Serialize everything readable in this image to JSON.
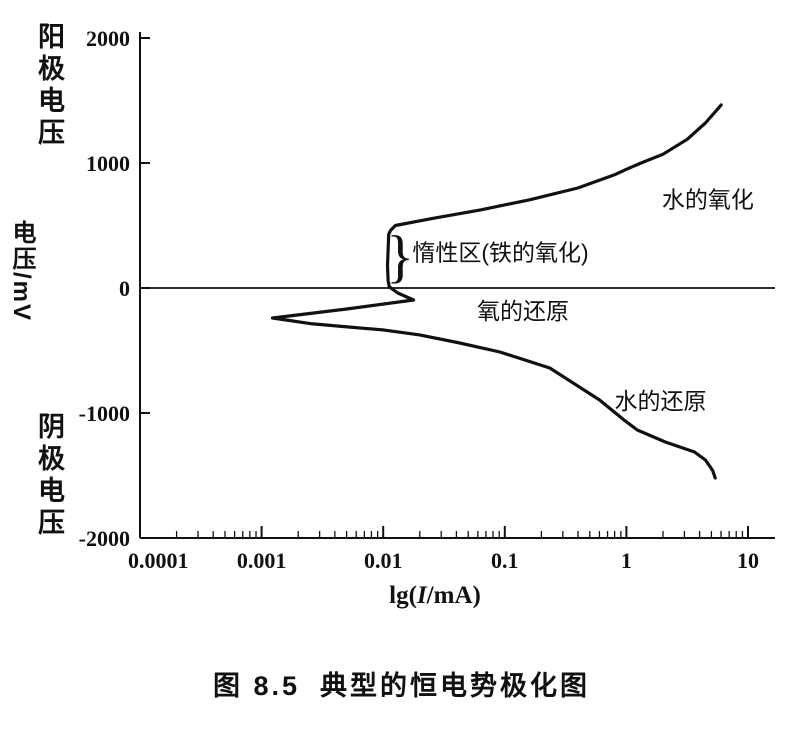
{
  "figure": {
    "caption_prefix": "图 8.5",
    "caption_title": "典型的恒电势极化图"
  },
  "chart_data": {
    "type": "line",
    "title": "典型的恒电势极化图",
    "xlabel": "lg(I/mA)",
    "xlabel_parts": {
      "prefix": "lg(",
      "arg": "I",
      "suffix": "/mA)"
    },
    "ylabel_vertical": "电压/mV",
    "axis_side_labels": {
      "top": "阳极电压",
      "bottom": "阴极电压"
    },
    "x_scale": "log",
    "xlim_log": [
      -4,
      1
    ],
    "ylim": [
      -2000,
      2000
    ],
    "x_ticks_lg": [
      -4,
      -3,
      -2,
      -1,
      0,
      1
    ],
    "x_tick_labels": [
      "0.0001",
      "0.001",
      "0.01",
      "0.1",
      "1",
      "10"
    ],
    "y_ticks": [
      2000,
      1000,
      0,
      -1000,
      -2000
    ],
    "y_tick_labels": [
      "2000",
      "1000",
      "0",
      "-1000",
      "-2000"
    ],
    "grid": false,
    "ink_color": "#111111",
    "series": [
      {
        "name": "polarization-curve",
        "color": "#111111",
        "points_lg_mv": [
          [
            0.78,
            1465
          ],
          [
            0.74,
            1420
          ],
          [
            0.65,
            1320
          ],
          [
            0.5,
            1190
          ],
          [
            0.3,
            1070
          ],
          [
            0.12,
            1000
          ],
          [
            0,
            950
          ],
          [
            -0.1,
            905
          ],
          [
            -0.4,
            800
          ],
          [
            -0.8,
            705
          ],
          [
            -1.2,
            625
          ],
          [
            -1.6,
            555
          ],
          [
            -1.9,
            500
          ],
          [
            -1.94,
            460
          ],
          [
            -1.955,
            430
          ],
          [
            -1.96,
            300
          ],
          [
            -1.965,
            180
          ],
          [
            -1.96,
            60
          ],
          [
            -1.95,
            10
          ],
          [
            -1.88,
            -40
          ],
          [
            -1.75,
            -96
          ],
          [
            -2.3,
            -168
          ],
          [
            -2.91,
            -240
          ],
          [
            -2.6,
            -285
          ],
          [
            -2.25,
            -315
          ],
          [
            -2,
            -335
          ],
          [
            -1.7,
            -375
          ],
          [
            -1.37,
            -440
          ],
          [
            -1.04,
            -512
          ],
          [
            -0.63,
            -640
          ],
          [
            -0.22,
            -896
          ],
          [
            -0.02,
            -1056
          ],
          [
            0.09,
            -1136
          ],
          [
            0.32,
            -1232
          ],
          [
            0.56,
            -1312
          ],
          [
            0.65,
            -1376
          ],
          [
            0.71,
            -1460
          ],
          [
            0.73,
            -1520
          ]
        ]
      }
    ],
    "annotations": [
      {
        "name": "water-oxidation",
        "text": "水的氧化",
        "lg": 0.67,
        "mv": 710,
        "anchor": "middle"
      },
      {
        "name": "passive-region",
        "text": "惰性区(铁的氧化)",
        "lg": -1.76,
        "mv": 285,
        "anchor": "start"
      },
      {
        "name": "oxygen-reduction",
        "text": "氧的还原",
        "lg": -0.85,
        "mv": -184,
        "anchor": "middle"
      },
      {
        "name": "water-reduction",
        "text": "水的还原",
        "lg": 0.28,
        "mv": -905,
        "anchor": "middle"
      }
    ],
    "brace": {
      "glyph": "}",
      "lg": -1.86,
      "mv": 256,
      "font_px": 58
    }
  }
}
